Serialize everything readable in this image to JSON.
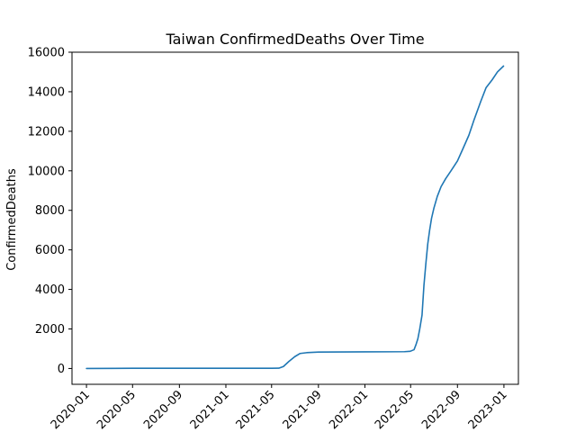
{
  "chart_data": {
    "type": "line",
    "title": "Taiwan  ConfirmedDeaths Over Time",
    "xlabel": "",
    "ylabel": "ConfirmedDeaths",
    "ylim": [
      -800,
      16000
    ],
    "xlim": [
      "2019-11-24",
      "2023-02-08"
    ],
    "yticks": [
      0,
      2000,
      4000,
      6000,
      8000,
      10000,
      12000,
      14000,
      16000
    ],
    "xticks": [
      "2020-01",
      "2020-05",
      "2020-09",
      "2021-01",
      "2021-05",
      "2021-09",
      "2022-01",
      "2022-05",
      "2022-09",
      "2023-01"
    ],
    "grid": false,
    "legend": false,
    "colors": {
      "line": "#1f77b4"
    },
    "series": [
      {
        "x": [
          "2020-01-01",
          "2020-05-01",
          "2020-09-01",
          "2021-01-01",
          "2021-05-01",
          "2021-05-20",
          "2021-06-01",
          "2021-06-15",
          "2021-07-01",
          "2021-07-15",
          "2021-08-01",
          "2021-09-01",
          "2021-11-01",
          "2022-01-01",
          "2022-03-01",
          "2022-04-15",
          "2022-04-30",
          "2022-05-10",
          "2022-05-15",
          "2022-05-20",
          "2022-05-25",
          "2022-05-31",
          "2022-06-05",
          "2022-06-10",
          "2022-06-15",
          "2022-06-20",
          "2022-06-25",
          "2022-07-01",
          "2022-07-10",
          "2022-07-20",
          "2022-08-01",
          "2022-08-15",
          "2022-09-01",
          "2022-09-15",
          "2022-10-01",
          "2022-10-15",
          "2022-11-01",
          "2022-11-15",
          "2022-12-01",
          "2022-12-15",
          "2022-12-31"
        ],
        "values": [
          0,
          10,
          10,
          10,
          12,
          15,
          100,
          350,
          600,
          760,
          800,
          830,
          835,
          840,
          845,
          850,
          870,
          950,
          1200,
          1500,
          2000,
          2700,
          4200,
          5300,
          6300,
          7000,
          7600,
          8100,
          8700,
          9200,
          9600,
          10000,
          10500,
          11100,
          11800,
          12600,
          13500,
          14200,
          14600,
          15000,
          15300
        ]
      }
    ]
  }
}
